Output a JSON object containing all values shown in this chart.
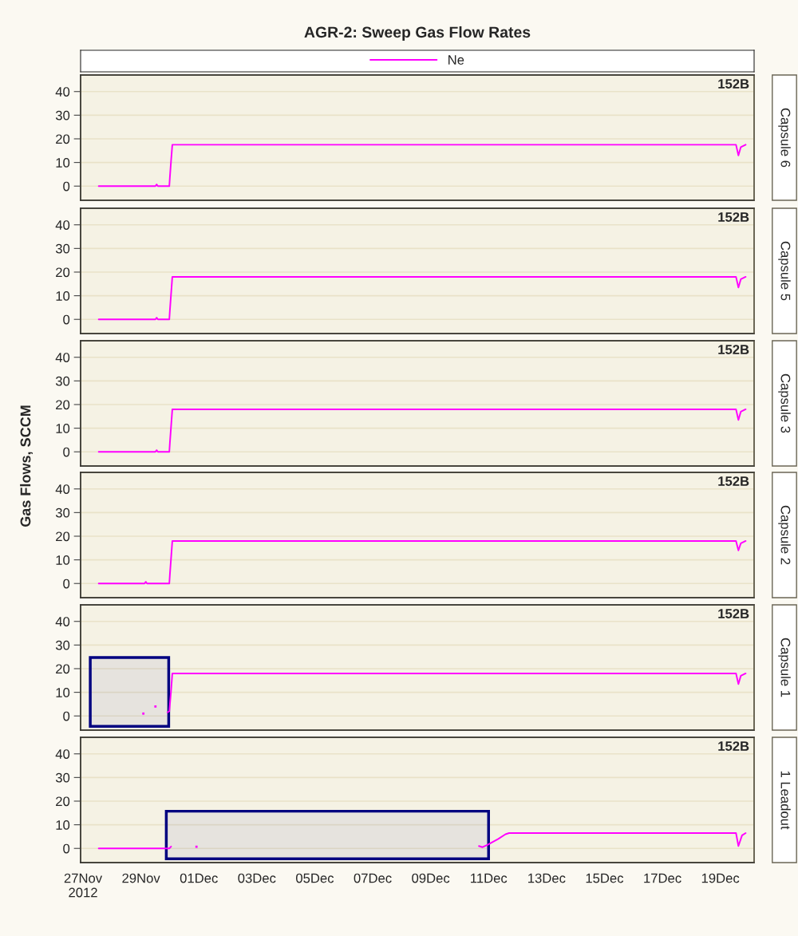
{
  "chart_data": [
    {
      "type": "line",
      "title": "AGR-2: Sweep Gas Flow Rates",
      "y2label": "Capsule 6",
      "annotations": [
        "152B"
      ],
      "legend": "top",
      "grid": "y",
      "tick_labels": "y",
      "xlim": [
        "2012-11-26T22:00",
        "2012-12-20T04:00"
      ],
      "ylim": [
        -6,
        47
      ],
      "yticks": [
        0,
        10,
        20,
        30,
        40
      ],
      "series": [
        {
          "name": "Ne",
          "color": "#ff00ff",
          "x": [
            "2012-11-27T13:00",
            "2012-11-29T12:00",
            "2012-11-29T13:00",
            "2012-11-29T14:00",
            "2012-11-29T23:30",
            "2012-11-30T00:00",
            "2012-11-30T01:00",
            "2012-11-30T02:00",
            "2012-12-19T13:00",
            "2012-12-19T15:00",
            "2012-12-19T17:00",
            "2012-12-19T21:00"
          ],
          "values": [
            0,
            0,
            0.7,
            0,
            0,
            4,
            11,
            17.5,
            17.5,
            13,
            16.5,
            17.5
          ]
        }
      ]
    },
    {
      "type": "line",
      "y2label": "Capsule 5",
      "annotations": [
        "152B"
      ],
      "grid": "y",
      "tick_labels": "y",
      "xlim": [
        "2012-11-26T22:00",
        "2012-12-20T04:00"
      ],
      "ylim": [
        -6,
        47
      ],
      "yticks": [
        0,
        10,
        20,
        30,
        40
      ],
      "series": [
        {
          "color": "#ff00ff",
          "x": [
            "2012-11-27T13:00",
            "2012-11-29T12:00",
            "2012-11-29T13:00",
            "2012-11-29T14:00",
            "2012-11-29T23:30",
            "2012-11-30T00:00",
            "2012-11-30T01:00",
            "2012-11-30T02:00",
            "2012-12-19T13:00",
            "2012-12-19T15:00",
            "2012-12-19T17:00",
            "2012-12-19T21:00"
          ],
          "values": [
            0,
            0,
            0.7,
            0,
            0,
            4,
            11,
            18,
            18,
            13.5,
            17,
            18
          ]
        }
      ]
    },
    {
      "type": "line",
      "y2label": "Capsule 3",
      "ylabel": "Gas Flows, SCCM",
      "annotations": [
        "152B"
      ],
      "grid": "y",
      "tick_labels": "y",
      "xlim": [
        "2012-11-26T22:00",
        "2012-12-20T04:00"
      ],
      "ylim": [
        -6,
        47
      ],
      "yticks": [
        0,
        10,
        20,
        30,
        40
      ],
      "series": [
        {
          "color": "#ff00ff",
          "x": [
            "2012-11-27T13:00",
            "2012-11-29T12:00",
            "2012-11-29T13:00",
            "2012-11-29T14:00",
            "2012-11-29T23:30",
            "2012-11-30T00:00",
            "2012-11-30T01:00",
            "2012-11-30T02:00",
            "2012-12-19T13:00",
            "2012-12-19T15:00",
            "2012-12-19T17:00",
            "2012-12-19T21:00"
          ],
          "values": [
            0,
            0,
            0.7,
            0,
            0,
            4,
            11,
            18,
            18,
            13.5,
            17,
            18
          ]
        }
      ]
    },
    {
      "type": "line",
      "y2label": "Capsule 2",
      "annotations": [
        "152B"
      ],
      "grid": "y",
      "tick_labels": "y",
      "xlim": [
        "2012-11-26T22:00",
        "2012-12-20T04:00"
      ],
      "ylim": [
        -6,
        47
      ],
      "yticks": [
        0,
        10,
        20,
        30,
        40
      ],
      "series": [
        {
          "color": "#ff00ff",
          "x": [
            "2012-11-27T13:00",
            "2012-11-29T03:00",
            "2012-11-29T04:00",
            "2012-11-29T05:00",
            "2012-11-29T23:30",
            "2012-11-30T00:00",
            "2012-11-30T01:00",
            "2012-11-30T02:00",
            "2012-12-19T13:00",
            "2012-12-19T15:00",
            "2012-12-19T17:00",
            "2012-12-19T21:00"
          ],
          "values": [
            0,
            0,
            0.7,
            0,
            0,
            4,
            11,
            18,
            18,
            14,
            17,
            18
          ]
        }
      ]
    },
    {
      "type": "line",
      "y2label": "Capsule 1",
      "annotations": [
        "152B"
      ],
      "grid": "y",
      "tick_labels": "y",
      "xlim": [
        "2012-11-26T22:00",
        "2012-12-20T04:00"
      ],
      "ylim": [
        -6,
        47
      ],
      "yticks": [
        0,
        10,
        20,
        30,
        40
      ],
      "bands": [
        {
          "axis": "x",
          "from": "2012-11-27T06:00",
          "to": "2012-11-29T23:00",
          "color": "#000080"
        }
      ],
      "series": [
        {
          "color": "#ff00ff",
          "x": [
            "2012-11-29T22:00",
            "2012-11-29T23:30",
            "2012-11-30T00:00",
            "2012-11-30T01:00",
            "2012-11-30T02:00",
            "2012-12-19T13:00",
            "2012-12-19T15:00",
            "2012-12-19T17:00",
            "2012-12-19T21:00"
          ],
          "values": [
            1.5,
            2,
            5,
            11,
            18,
            18,
            13.5,
            17,
            18
          ]
        },
        {
          "type": "scatter",
          "color": "#ff00ff",
          "x": [
            "2012-11-29T02:00",
            "2012-11-29T12:00"
          ],
          "values": [
            1,
            4
          ]
        }
      ]
    },
    {
      "type": "line",
      "y2label": "1 Leadout",
      "annotations": [
        "152B"
      ],
      "grid": "y",
      "xlim": [
        "2012-11-26T22:00",
        "2012-12-20T04:00"
      ],
      "ylim": [
        -6,
        47
      ],
      "yticks": [
        0,
        10,
        20,
        30,
        40
      ],
      "xticks": [
        {
          "value": "2012-11-27",
          "label": "27Nov\n2012"
        },
        {
          "value": "2012-11-29",
          "label": "29Nov"
        },
        {
          "value": "2012-12-01",
          "label": "01Dec"
        },
        {
          "value": "2012-12-03",
          "label": "03Dec"
        },
        {
          "value": "2012-12-05",
          "label": "05Dec"
        },
        {
          "value": "2012-12-07",
          "label": "07Dec"
        },
        {
          "value": "2012-12-09",
          "label": "09Dec"
        },
        {
          "value": "2012-12-11",
          "label": "11Dec"
        },
        {
          "value": "2012-12-13",
          "label": "13Dec"
        },
        {
          "value": "2012-12-15",
          "label": "15Dec"
        },
        {
          "value": "2012-12-17",
          "label": "17Dec"
        },
        {
          "value": "2012-12-19",
          "label": "19Dec"
        }
      ],
      "bands": [
        {
          "axis": "x",
          "from": "2012-11-29T21:00",
          "to": "2012-12-11T00:00",
          "color": "#000080"
        }
      ],
      "series": [
        {
          "color": "#ff00ff",
          "x": [
            "2012-11-27T13:00",
            "2012-11-29T23:30",
            "2012-11-30T01:00",
            "2012-12-05T00:00",
            "2012-12-10T16:00",
            "2012-12-10T19:00",
            "2012-12-10T23:00",
            "2012-12-11T08:00",
            "2012-12-11T14:00",
            "2012-12-11T17:00",
            "2012-12-19T13:00",
            "2012-12-19T15:00",
            "2012-12-19T18:00",
            "2012-12-19T21:00"
          ],
          "values": [
            0,
            0,
            0.8,
            null,
            1,
            0.5,
            1.5,
            4,
            6,
            6.5,
            6.5,
            1,
            5.5,
            6.5
          ]
        },
        {
          "type": "scatter",
          "color": "#ff00ff",
          "x": [
            "2012-11-30T22:00"
          ],
          "values": [
            0.7
          ]
        }
      ]
    }
  ]
}
